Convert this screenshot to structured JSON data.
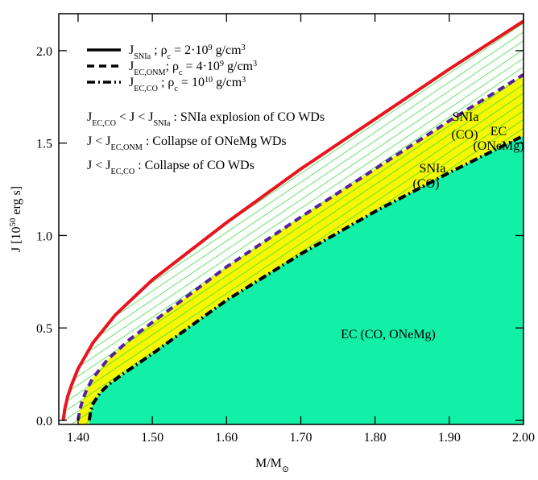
{
  "chart_data": {
    "type": "line",
    "xlabel": [
      [
        "M/M",
        ""
      ],
      [
        "⊙",
        "sub"
      ]
    ],
    "ylabel": [
      [
        "J [10",
        ""
      ],
      [
        "50",
        "sup"
      ],
      [
        " erg s]",
        ""
      ]
    ],
    "xlim": [
      1.374,
      2.0
    ],
    "ylim": [
      -0.022,
      2.2
    ],
    "xticks": [
      {
        "value": 1.4,
        "label": "1.40"
      },
      {
        "value": 1.5,
        "label": "1.50"
      },
      {
        "value": 1.6,
        "label": "1.60"
      },
      {
        "value": 1.7,
        "label": "1.70"
      },
      {
        "value": 1.8,
        "label": "1.80"
      },
      {
        "value": 1.9,
        "label": "1.90"
      },
      {
        "value": 2.0,
        "label": "2.00"
      }
    ],
    "yticks": [
      {
        "value": 0,
        "label": "0.0"
      },
      {
        "value": 0.5,
        "label": "0.5"
      },
      {
        "value": 1,
        "label": "1.0"
      },
      {
        "value": 1.5,
        "label": "1.5"
      },
      {
        "value": 2,
        "label": "2.0"
      }
    ],
    "series": [
      {
        "name": [
          [
            "J",
            ""
          ],
          [
            "SNIa",
            "sub"
          ],
          [
            "  ; ρ",
            ""
          ],
          [
            "c",
            "sub"
          ],
          [
            " = 2·10",
            ""
          ],
          [
            "9",
            "sup"
          ],
          [
            " g/cm",
            ""
          ],
          [
            "3",
            "sup"
          ]
        ],
        "color": "#e8141e",
        "dash": "none",
        "x": [
          1.38,
          1.382,
          1.386,
          1.392,
          1.4,
          1.42,
          1.45,
          1.5,
          1.6,
          1.7,
          1.8,
          1.9,
          2.0
        ],
        "values": [
          0,
          0.06,
          0.13,
          0.2,
          0.28,
          0.42,
          0.57,
          0.76,
          1.07,
          1.36,
          1.63,
          1.9,
          2.16
        ]
      },
      {
        "name": [
          [
            "J",
            ""
          ],
          [
            "EC,ONM",
            "sub"
          ],
          [
            "; ρ",
            ""
          ],
          [
            "c",
            "sub"
          ],
          [
            " = 4·10",
            ""
          ],
          [
            "9",
            "sup"
          ],
          [
            " g/cm",
            ""
          ],
          [
            "3",
            "sup"
          ]
        ],
        "color": "#55219c",
        "dash": "9,6",
        "x": [
          1.4,
          1.402,
          1.406,
          1.412,
          1.42,
          1.44,
          1.47,
          1.5,
          1.6,
          1.7,
          1.8,
          1.9,
          2.0
        ],
        "values": [
          0,
          0.05,
          0.11,
          0.17,
          0.23,
          0.33,
          0.44,
          0.53,
          0.83,
          1.1,
          1.36,
          1.62,
          1.87
        ]
      },
      {
        "name": [
          [
            "J",
            ""
          ],
          [
            "EC,CO",
            "sub"
          ],
          [
            " ; ρ",
            ""
          ],
          [
            "c",
            "sub"
          ],
          [
            " = 10",
            ""
          ],
          [
            "10",
            "sup"
          ],
          [
            "  g/cm",
            ""
          ],
          [
            "3",
            "sup"
          ]
        ],
        "color": "#000000",
        "dash": "10,4,2,4",
        "x": [
          1.415,
          1.417,
          1.42,
          1.43,
          1.44,
          1.46,
          1.5,
          1.6,
          1.7,
          1.8,
          1.9,
          2.0
        ],
        "values": [
          0,
          0.05,
          0.09,
          0.15,
          0.19,
          0.25,
          0.36,
          0.65,
          0.9,
          1.13,
          1.34,
          1.54
        ]
      }
    ],
    "annotations": [
      [
        [
          "J",
          ""
        ],
        [
          "EC,CO",
          "sub"
        ],
        [
          " < J < J",
          ""
        ],
        [
          "SNIa",
          "sub"
        ],
        [
          " : SNIa explosion of CO WDs",
          ""
        ]
      ],
      [
        [
          "J < J",
          ""
        ],
        [
          "EC,ONM",
          "sub"
        ],
        [
          " : Collapse of ONeMg WDs",
          ""
        ]
      ],
      [
        [
          "J < J",
          ""
        ],
        [
          "EC,CO",
          "sub"
        ],
        [
          " : Collapse of CO WDs",
          ""
        ]
      ]
    ],
    "region_labels": [
      "SNIa",
      "(CO)",
      "EC",
      "(ONeMg)",
      "SNIa",
      "(CO)",
      "EC (CO, ONeMg)"
    ],
    "fill_colors": [
      "#ffffff",
      "#f7f700",
      "#12f0a8"
    ],
    "hatch_color": "#44dd44"
  }
}
